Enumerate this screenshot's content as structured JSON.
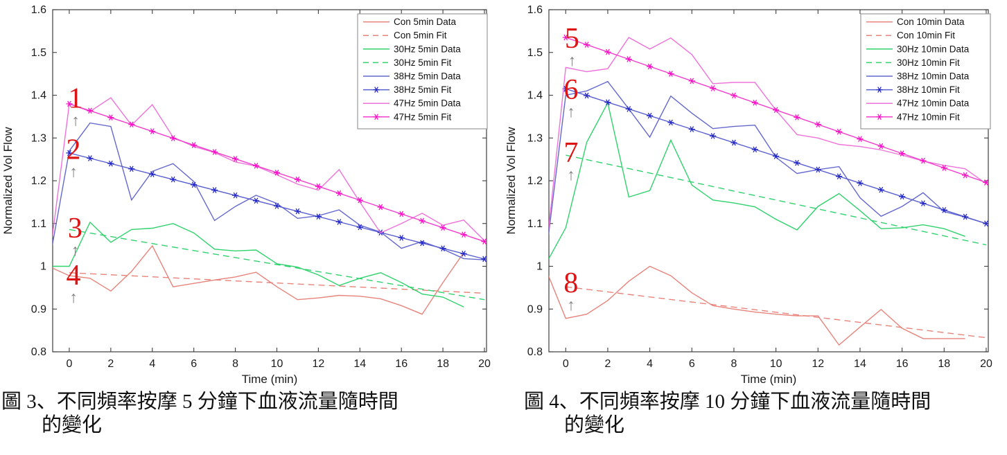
{
  "figure_title": "",
  "chart_data": [
    {
      "type": "line",
      "xlabel": "Time (min)",
      "ylabel": "Normalized Vol Flow",
      "xlim": [
        -0.8,
        20.1
      ],
      "ylim": [
        0.8,
        1.6
      ],
      "xticks": [
        0,
        2,
        4,
        6,
        8,
        10,
        12,
        14,
        16,
        18,
        20
      ],
      "yticks": [
        0.8,
        0.9,
        1.0,
        1.1,
        1.2,
        1.3,
        1.4,
        1.5,
        1.6
      ],
      "ytick_labels": [
        "0.8",
        "0.9",
        "1",
        "1.1",
        "1.2",
        "1.3",
        "1.4",
        "1.5",
        "1.6"
      ],
      "grid": false,
      "legend_position": "top-right",
      "annotation_color": "#de1414",
      "arrow_color": "#7f7f7f",
      "series": [
        {
          "name": "Con 5min Data",
          "color": "#e7837b",
          "style": "solid",
          "marker": false,
          "points": [
            [
              -1,
              1.0
            ],
            [
              0,
              0.978
            ],
            [
              1,
              0.972
            ],
            [
              2,
              0.942
            ],
            [
              3,
              0.988
            ],
            [
              4,
              1.048
            ],
            [
              5,
              0.952
            ],
            [
              6,
              0.96
            ],
            [
              7,
              0.968
            ],
            [
              8,
              0.975
            ],
            [
              9,
              0.986
            ],
            [
              10,
              0.952
            ],
            [
              11,
              0.922
            ],
            [
              12,
              0.926
            ],
            [
              13,
              0.932
            ],
            [
              14,
              0.93
            ],
            [
              15,
              0.924
            ],
            [
              16,
              0.908
            ],
            [
              17,
              0.888
            ],
            [
              18,
              0.962
            ],
            [
              19,
              1.032
            ]
          ]
        },
        {
          "name": "Con 5min Fit",
          "color": "#e7837b",
          "style": "dashed",
          "marker": false,
          "points": [
            [
              0,
              0.985
            ],
            [
              20,
              0.937
            ]
          ]
        },
        {
          "name": "30Hz 5min Data",
          "color": "#30d26e",
          "style": "solid",
          "marker": false,
          "points": [
            [
              -1,
              1.0
            ],
            [
              0,
              1.0
            ],
            [
              1,
              1.103
            ],
            [
              2,
              1.056
            ],
            [
              3,
              1.086
            ],
            [
              4,
              1.089
            ],
            [
              5,
              1.1
            ],
            [
              6,
              1.078
            ],
            [
              7,
              1.04
            ],
            [
              8,
              1.036
            ],
            [
              9,
              1.038
            ],
            [
              10,
              1.006
            ],
            [
              11,
              0.998
            ],
            [
              12,
              0.98
            ],
            [
              13,
              0.955
            ],
            [
              14,
              0.972
            ],
            [
              15,
              0.985
            ],
            [
              16,
              0.962
            ],
            [
              17,
              0.935
            ],
            [
              18,
              0.928
            ],
            [
              19,
              0.905
            ]
          ]
        },
        {
          "name": "30Hz 5min Fit",
          "color": "#30d26e",
          "style": "dashed",
          "marker": false,
          "points": [
            [
              0,
              1.086
            ],
            [
              20,
              0.922
            ]
          ]
        },
        {
          "name": "38Hz 5min Data",
          "color": "#6468ce",
          "style": "solid",
          "marker": false,
          "points": [
            [
              -1,
              1.0
            ],
            [
              0,
              1.27
            ],
            [
              1,
              1.335
            ],
            [
              2,
              1.327
            ],
            [
              3,
              1.155
            ],
            [
              4,
              1.222
            ],
            [
              5,
              1.24
            ],
            [
              6,
              1.198
            ],
            [
              7,
              1.107
            ],
            [
              8,
              1.14
            ],
            [
              9,
              1.166
            ],
            [
              10,
              1.147
            ],
            [
              11,
              1.112
            ],
            [
              12,
              1.118
            ],
            [
              13,
              1.132
            ],
            [
              14,
              1.096
            ],
            [
              15,
              1.08
            ],
            [
              16,
              1.042
            ],
            [
              17,
              1.058
            ],
            [
              18,
              1.04
            ],
            [
              19,
              1.018
            ],
            [
              20,
              1.015
            ]
          ]
        },
        {
          "name": "38Hz 5min Fit",
          "color": "#5a5fd0",
          "style": "solid",
          "marker": true,
          "marker_color": "#2428c4",
          "points": [
            [
              0,
              1.265
            ],
            [
              20,
              1.017
            ]
          ]
        },
        {
          "name": "47Hz 5min Data",
          "color": "#ee72da",
          "style": "solid",
          "marker": false,
          "points": [
            [
              -1,
              1.0
            ],
            [
              0,
              1.38
            ],
            [
              1,
              1.362
            ],
            [
              2,
              1.394
            ],
            [
              3,
              1.33
            ],
            [
              4,
              1.378
            ],
            [
              5,
              1.302
            ],
            [
              6,
              1.28
            ],
            [
              7,
              1.266
            ],
            [
              8,
              1.244
            ],
            [
              9,
              1.234
            ],
            [
              10,
              1.214
            ],
            [
              11,
              1.192
            ],
            [
              12,
              1.178
            ],
            [
              13,
              1.226
            ],
            [
              14,
              1.15
            ],
            [
              15,
              1.078
            ],
            [
              16,
              1.1
            ],
            [
              17,
              1.124
            ],
            [
              18,
              1.096
            ],
            [
              19,
              1.108
            ],
            [
              20,
              1.06
            ]
          ]
        },
        {
          "name": "47Hz 5min Fit",
          "color": "#f23cce",
          "style": "solid",
          "marker": true,
          "marker_color": "#f911c6",
          "points": [
            [
              0,
              1.38
            ],
            [
              20,
              1.058
            ]
          ]
        }
      ],
      "annotations": [
        {
          "label": "1",
          "x": 0.3,
          "y": 1.392
        },
        {
          "label": "2",
          "x": 0.2,
          "y": 1.272
        },
        {
          "label": "3",
          "x": 0.28,
          "y": 1.088
        },
        {
          "label": "4",
          "x": 0.2,
          "y": 0.978
        }
      ],
      "caption": {
        "line1": "圖 3、不同頻率按摩 5 分鐘下血液流量隨時間",
        "line2": "的變化"
      }
    },
    {
      "type": "line",
      "xlabel": "Time (min)",
      "ylabel": "Normalized Vol Flow",
      "xlim": [
        -0.8,
        20.1
      ],
      "ylim": [
        0.8,
        1.6
      ],
      "xticks": [
        0,
        2,
        4,
        6,
        8,
        10,
        12,
        14,
        16,
        18,
        20
      ],
      "yticks": [
        0.8,
        0.9,
        1.0,
        1.1,
        1.2,
        1.3,
        1.4,
        1.5,
        1.6
      ],
      "ytick_labels": [
        "0.8",
        "0.9",
        "1",
        "1.1",
        "1.2",
        "1.3",
        "1.4",
        "1.5",
        "1.6"
      ],
      "grid": false,
      "legend_position": "top-right",
      "annotation_color": "#de1414",
      "arrow_color": "#7f7f7f",
      "series": [
        {
          "name": "Con 10min Data",
          "color": "#e7837b",
          "style": "solid",
          "marker": false,
          "points": [
            [
              -1,
              1.0
            ],
            [
              0,
              0.878
            ],
            [
              1,
              0.888
            ],
            [
              2,
              0.92
            ],
            [
              3,
              0.965
            ],
            [
              4,
              1.0
            ],
            [
              5,
              0.978
            ],
            [
              6,
              0.938
            ],
            [
              7,
              0.908
            ],
            [
              8,
              0.9
            ],
            [
              9,
              0.893
            ],
            [
              10,
              0.888
            ],
            [
              11,
              0.884
            ],
            [
              12,
              0.884
            ],
            [
              13,
              0.816
            ],
            [
              14,
              0.858
            ],
            [
              15,
              0.899
            ],
            [
              16,
              0.855
            ],
            [
              17,
              0.831
            ],
            [
              18,
              0.831
            ],
            [
              19,
              0.831
            ]
          ]
        },
        {
          "name": "Con 10min Fit",
          "color": "#e7837b",
          "style": "dashed",
          "marker": false,
          "points": [
            [
              0,
              0.952
            ],
            [
              20,
              0.833
            ]
          ]
        },
        {
          "name": "30Hz 10min Data",
          "color": "#30d26e",
          "style": "solid",
          "marker": false,
          "points": [
            [
              -1,
              1.0
            ],
            [
              0,
              1.09
            ],
            [
              1,
              1.29
            ],
            [
              2,
              1.382
            ],
            [
              3,
              1.162
            ],
            [
              4,
              1.177
            ],
            [
              5,
              1.295
            ],
            [
              6,
              1.19
            ],
            [
              7,
              1.155
            ],
            [
              8,
              1.148
            ],
            [
              9,
              1.139
            ],
            [
              10,
              1.11
            ],
            [
              11,
              1.085
            ],
            [
              12,
              1.14
            ],
            [
              13,
              1.17
            ],
            [
              14,
              1.13
            ],
            [
              15,
              1.088
            ],
            [
              16,
              1.09
            ],
            [
              17,
              1.097
            ],
            [
              18,
              1.088
            ],
            [
              19,
              1.07
            ]
          ]
        },
        {
          "name": "30Hz 10min Fit",
          "color": "#30d26e",
          "style": "dashed",
          "marker": false,
          "points": [
            [
              0,
              1.26
            ],
            [
              20,
              1.05
            ]
          ]
        },
        {
          "name": "38Hz 10min Data",
          "color": "#6468ce",
          "style": "solid",
          "marker": false,
          "points": [
            [
              -1,
              1.0
            ],
            [
              0,
              1.4
            ],
            [
              1,
              1.41
            ],
            [
              2,
              1.432
            ],
            [
              3,
              1.368
            ],
            [
              4,
              1.302
            ],
            [
              5,
              1.398
            ],
            [
              6,
              1.358
            ],
            [
              7,
              1.322
            ],
            [
              8,
              1.327
            ],
            [
              9,
              1.33
            ],
            [
              10,
              1.255
            ],
            [
              11,
              1.217
            ],
            [
              12,
              1.226
            ],
            [
              13,
              1.233
            ],
            [
              14,
              1.16
            ],
            [
              15,
              1.117
            ],
            [
              16,
              1.14
            ],
            [
              17,
              1.172
            ],
            [
              18,
              1.128
            ],
            [
              19,
              1.115
            ],
            [
              20,
              1.1
            ]
          ]
        },
        {
          "name": "38Hz 10min Fit",
          "color": "#5a5fd0",
          "style": "solid",
          "marker": true,
          "marker_color": "#2428c4",
          "points": [
            [
              0,
              1.415
            ],
            [
              20,
              1.1
            ]
          ]
        },
        {
          "name": "47Hz 10min Data",
          "color": "#ee72da",
          "style": "solid",
          "marker": false,
          "points": [
            [
              -1,
              1.0
            ],
            [
              0,
              1.465
            ],
            [
              1,
              1.455
            ],
            [
              2,
              1.462
            ],
            [
              3,
              1.535
            ],
            [
              4,
              1.508
            ],
            [
              5,
              1.534
            ],
            [
              6,
              1.495
            ],
            [
              7,
              1.427
            ],
            [
              8,
              1.43
            ],
            [
              9,
              1.43
            ],
            [
              10,
              1.365
            ],
            [
              11,
              1.308
            ],
            [
              12,
              1.3
            ],
            [
              13,
              1.285
            ],
            [
              14,
              1.28
            ],
            [
              15,
              1.272
            ],
            [
              16,
              1.26
            ],
            [
              17,
              1.246
            ],
            [
              18,
              1.236
            ],
            [
              19,
              1.228
            ],
            [
              20,
              1.193
            ]
          ]
        },
        {
          "name": "47Hz 10min Fit",
          "color": "#f23cce",
          "style": "solid",
          "marker": true,
          "marker_color": "#f911c6",
          "points": [
            [
              0,
              1.535
            ],
            [
              20,
              1.196
            ]
          ]
        }
      ],
      "annotations": [
        {
          "label": "5",
          "x": 0.3,
          "y": 1.532
        },
        {
          "label": "6",
          "x": 0.25,
          "y": 1.412
        },
        {
          "label": "7",
          "x": 0.25,
          "y": 1.265
        },
        {
          "label": "8",
          "x": 0.25,
          "y": 0.96
        }
      ],
      "caption": {
        "line1": "圖 4、不同頻率按摩 10 分鐘下血液流量隨時間",
        "line2": "的變化"
      }
    }
  ]
}
